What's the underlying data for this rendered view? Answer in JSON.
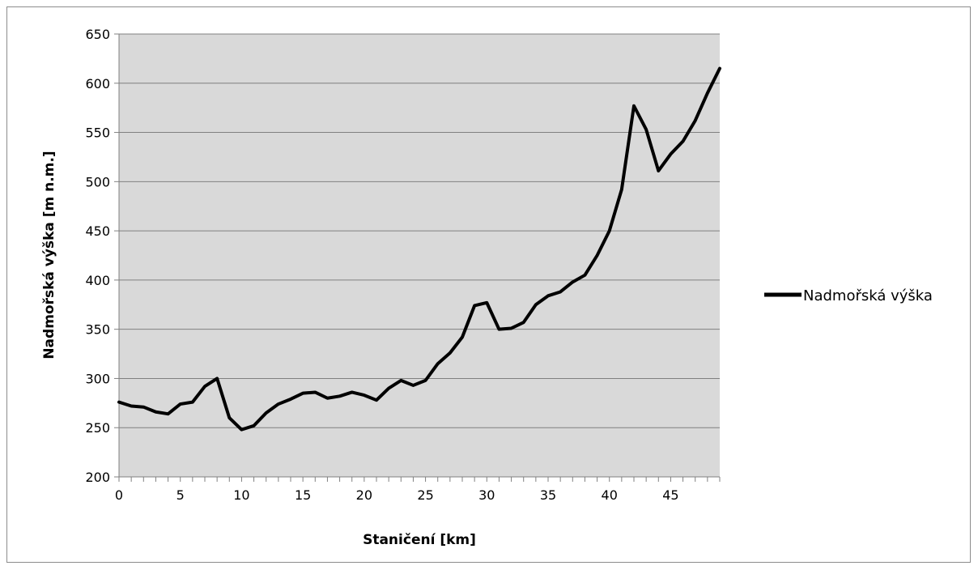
{
  "chart_data": {
    "type": "line",
    "xlabel": "Staničení [km]",
    "ylabel": "Nadmořská výška [m n.m.]",
    "xlim": [
      0,
      49
    ],
    "ylim": [
      200,
      650
    ],
    "x_ticks": [
      "0",
      "5",
      "10",
      "15",
      "20",
      "25",
      "30",
      "35",
      "40",
      "45"
    ],
    "y_ticks": [
      "200",
      "250",
      "300",
      "350",
      "400",
      "450",
      "500",
      "550",
      "600",
      "650"
    ],
    "grid": true,
    "legend_position": "right",
    "colors": {
      "plot_background": "#d9d9d9",
      "line": "#000000",
      "gridline": "#808080"
    },
    "series": [
      {
        "name": "Nadmořská výška",
        "x": [
          0,
          1,
          2,
          3,
          4,
          5,
          6,
          7,
          8,
          9,
          10,
          11,
          12,
          13,
          14,
          15,
          16,
          17,
          18,
          19,
          20,
          21,
          22,
          23,
          24,
          25,
          26,
          27,
          28,
          29,
          30,
          31,
          32,
          33,
          34,
          35,
          36,
          37,
          38,
          39,
          40,
          41,
          42,
          43,
          44,
          45,
          46,
          47,
          48,
          49
        ],
        "values": [
          276,
          272,
          271,
          266,
          264,
          274,
          276,
          292,
          300,
          260,
          248,
          252,
          265,
          274,
          279,
          285,
          286,
          280,
          282,
          286,
          283,
          278,
          290,
          298,
          293,
          298,
          315,
          326,
          342,
          374,
          377,
          350,
          351,
          357,
          375,
          384,
          388,
          398,
          405,
          425,
          450,
          492,
          577,
          553,
          511,
          528,
          541,
          562,
          590,
          615
        ]
      }
    ]
  }
}
